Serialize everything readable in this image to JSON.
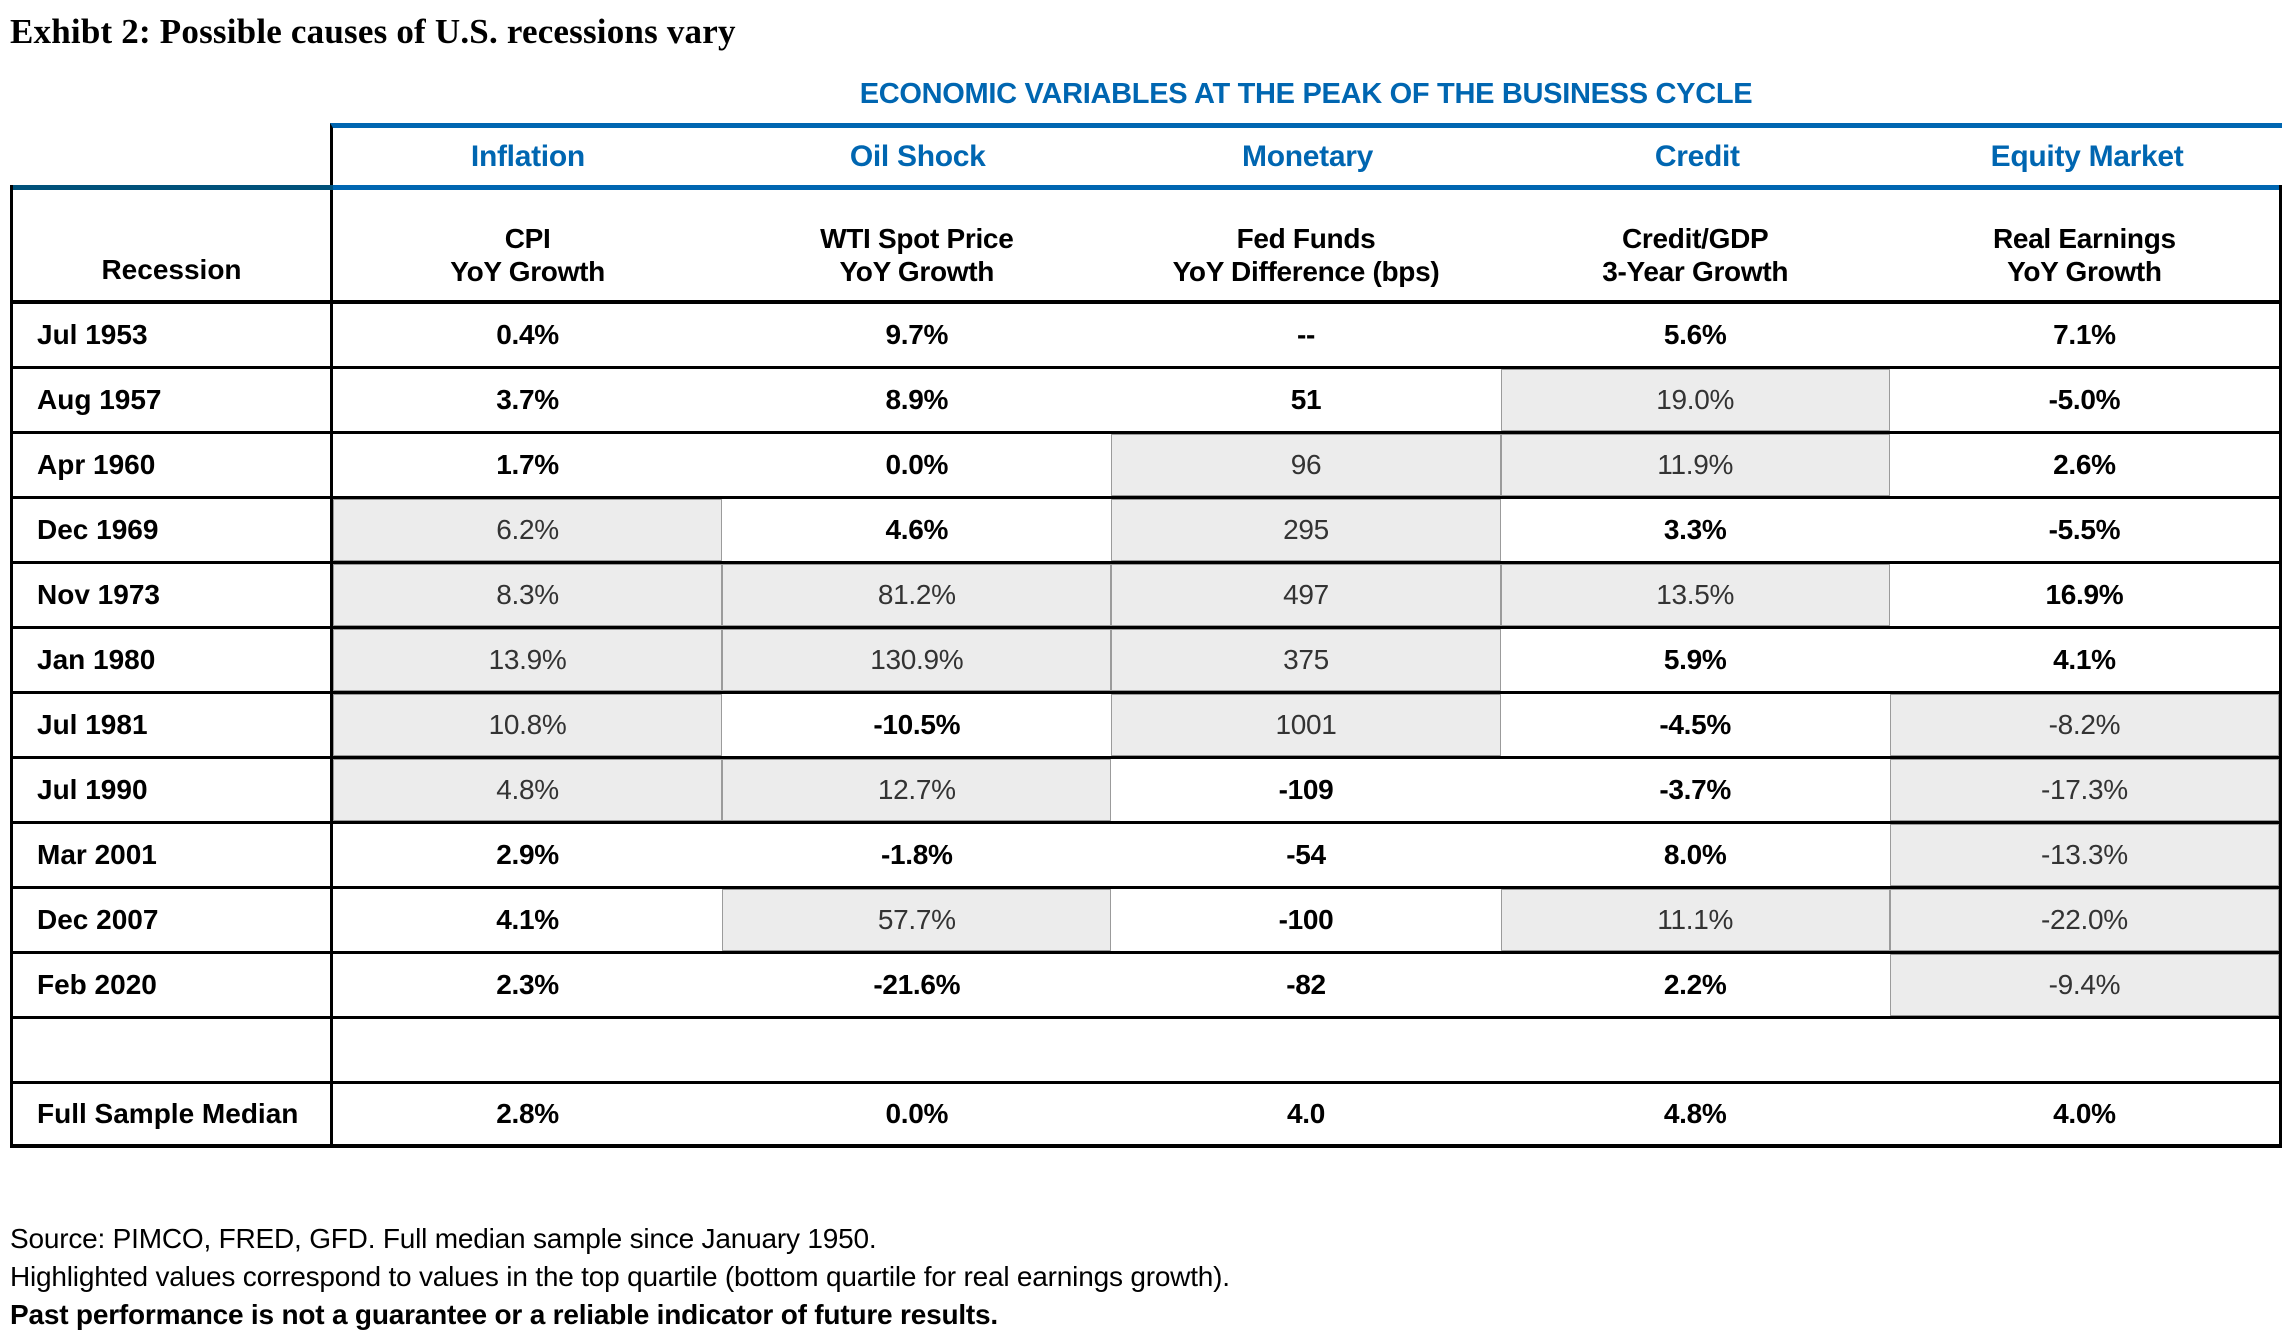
{
  "title": "Exhibt 2: Possible causes of U.S. recessions vary",
  "table": {
    "caption": "ECONOMIC VARIABLES AT THE PEAK OF THE BUSINESS CYCLE",
    "group_headers": [
      "Inflation",
      "Oil Shock",
      "Monetary",
      "Credit",
      "Equity Market"
    ],
    "row_header": "Recession",
    "col_headers": [
      {
        "line1": "CPI",
        "line2": "YoY Growth"
      },
      {
        "line1": "WTI Spot Price",
        "line2": "YoY Growth"
      },
      {
        "line1": "Fed Funds",
        "line2": "YoY Difference (bps)"
      },
      {
        "line1": "Credit/GDP",
        "line2": "3-Year Growth"
      },
      {
        "line1": "Real Earnings",
        "line2": "YoY Growth"
      }
    ],
    "rows": [
      {
        "label": "Jul 1953",
        "values": [
          "0.4%",
          "9.7%",
          "--",
          "5.6%",
          "7.1%"
        ],
        "highlights": [
          false,
          false,
          false,
          false,
          false
        ]
      },
      {
        "label": "Aug 1957",
        "values": [
          "3.7%",
          "8.9%",
          "51",
          "19.0%",
          "-5.0%"
        ],
        "highlights": [
          false,
          false,
          false,
          true,
          false
        ]
      },
      {
        "label": "Apr 1960",
        "values": [
          "1.7%",
          "0.0%",
          "96",
          "11.9%",
          "2.6%"
        ],
        "highlights": [
          false,
          false,
          true,
          true,
          false
        ]
      },
      {
        "label": "Dec 1969",
        "values": [
          "6.2%",
          "4.6%",
          "295",
          "3.3%",
          "-5.5%"
        ],
        "highlights": [
          true,
          false,
          true,
          false,
          false
        ]
      },
      {
        "label": "Nov 1973",
        "values": [
          "8.3%",
          "81.2%",
          "497",
          "13.5%",
          "16.9%"
        ],
        "highlights": [
          true,
          true,
          true,
          true,
          false
        ]
      },
      {
        "label": "Jan 1980",
        "values": [
          "13.9%",
          "130.9%",
          "375",
          "5.9%",
          "4.1%"
        ],
        "highlights": [
          true,
          true,
          true,
          false,
          false
        ]
      },
      {
        "label": "Jul 1981",
        "values": [
          "10.8%",
          "-10.5%",
          "1001",
          "-4.5%",
          "-8.2%"
        ],
        "highlights": [
          true,
          false,
          true,
          false,
          true
        ]
      },
      {
        "label": "Jul 1990",
        "values": [
          "4.8%",
          "12.7%",
          "-109",
          "-3.7%",
          "-17.3%"
        ],
        "highlights": [
          true,
          true,
          false,
          false,
          true
        ]
      },
      {
        "label": "Mar 2001",
        "values": [
          "2.9%",
          "-1.8%",
          "-54",
          "8.0%",
          "-13.3%"
        ],
        "highlights": [
          false,
          false,
          false,
          false,
          true
        ]
      },
      {
        "label": "Dec 2007",
        "values": [
          "4.1%",
          "57.7%",
          "-100",
          "11.1%",
          "-22.0%"
        ],
        "highlights": [
          false,
          true,
          false,
          true,
          true
        ]
      },
      {
        "label": "Feb 2020",
        "values": [
          "2.3%",
          "-21.6%",
          "-82",
          "2.2%",
          "-9.4%"
        ],
        "highlights": [
          false,
          false,
          false,
          false,
          true
        ]
      }
    ],
    "median": {
      "label": "Full Sample Median",
      "values": [
        "2.8%",
        "0.0%",
        "4.0",
        "4.8%",
        "4.0%"
      ]
    }
  },
  "footer": {
    "source": "Source: PIMCO, FRED, GFD. Full median sample since January 1950.",
    "highlight_note": "Highlighted values correspond to values in the top quartile (bottom quartile for real earnings growth).",
    "disclaimer": "Past performance is not a guarantee or a reliable indicator of future results."
  },
  "colors": {
    "accent_blue": "#0066B1",
    "accent_dark_teal": "#00517A",
    "highlight_bg": "#ECECEC",
    "highlight_text": "#333333"
  }
}
